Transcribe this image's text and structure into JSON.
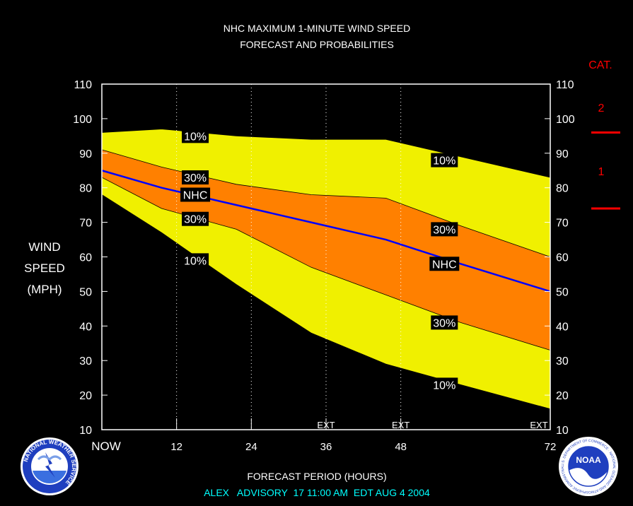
{
  "header": {
    "title_line1": "NHC MAXIMUM 1-MINUTE WIND SPEED",
    "title_line2": "FORECAST AND PROBABILITIES"
  },
  "y_axis_label": [
    "WIND",
    "SPEED",
    "(MPH)"
  ],
  "x_axis_label": "FORECAST PERIOD (HOURS)",
  "footer": "ALEX   ADVISORY  17 11:00 AM  EDT AUG 4 2004",
  "category": {
    "title": "CAT.",
    "labels": [
      "2",
      "1"
    ],
    "thresholds": [
      96,
      74
    ],
    "color": "#ff0000"
  },
  "logos": {
    "left_text": "NATIONAL WEATHER SERVICE",
    "right_text": "NOAA",
    "right_ring_text": "U.S. DEPARTMENT OF COMMERCE · NATIONAL OCEANIC AND ATMOSPHERIC ADMINISTRATION"
  },
  "colors": {
    "band_10": "#f0f000",
    "band_30": "#ff8000",
    "nhc_line": "#0000ff",
    "axis": "#ffffff",
    "footer": "#00ffff"
  },
  "chart_data": {
    "type": "area",
    "xlim": [
      0,
      72
    ],
    "ylim": [
      10,
      110
    ],
    "x_ticks": [
      0,
      12,
      24,
      36,
      48,
      72
    ],
    "x_tick_labels": [
      "NOW",
      "12",
      "24",
      "36",
      "48",
      "72"
    ],
    "y_ticks": [
      10,
      20,
      30,
      40,
      50,
      60,
      70,
      80,
      90,
      100,
      110
    ],
    "grid_x_dotted": [
      12,
      24,
      36,
      48
    ],
    "ext_markers": [
      {
        "x": 36,
        "label": "EXT"
      },
      {
        "x": 48,
        "label": "EXT"
      },
      {
        "x": 72,
        "label": "EXT"
      }
    ],
    "x": [
      0,
      9.6,
      21.6,
      33.6,
      45.6,
      57.6,
      72
    ],
    "series": [
      {
        "name": "10%",
        "values": [
          96,
          97,
          95,
          94,
          94,
          89,
          83
        ]
      },
      {
        "name": "30%",
        "values": [
          91,
          86,
          81,
          78,
          77,
          69,
          60
        ]
      },
      {
        "name": "NHC",
        "values": [
          85,
          80,
          75,
          70,
          65,
          58,
          50
        ]
      },
      {
        "name": "30%",
        "values": [
          83,
          74,
          68,
          57,
          49,
          41,
          33
        ]
      },
      {
        "name": "10%",
        "values": [
          78,
          67,
          52,
          38,
          29,
          23,
          16
        ]
      }
    ],
    "band_labels": [
      {
        "text": "10%",
        "x": 15,
        "y": 95
      },
      {
        "text": "30%",
        "x": 15,
        "y": 83
      },
      {
        "text": "NHC",
        "x": 15,
        "y": 78
      },
      {
        "text": "30%",
        "x": 15,
        "y": 71
      },
      {
        "text": "10%",
        "x": 15,
        "y": 59
      },
      {
        "text": "10%",
        "x": 55,
        "y": 88
      },
      {
        "text": "30%",
        "x": 55,
        "y": 68
      },
      {
        "text": "NHC",
        "x": 55,
        "y": 58
      },
      {
        "text": "30%",
        "x": 55,
        "y": 41
      },
      {
        "text": "10%",
        "x": 55,
        "y": 23
      }
    ]
  }
}
